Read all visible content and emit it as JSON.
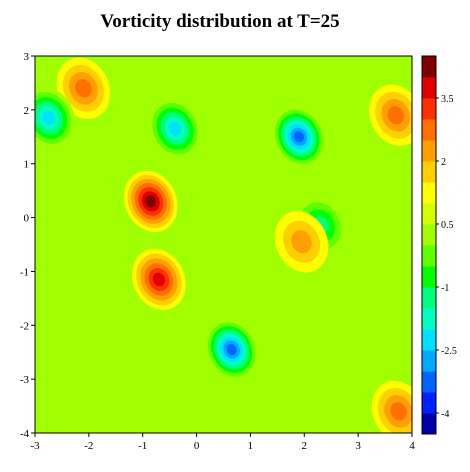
{
  "chart_data": {
    "type": "heatmap",
    "title": "Vorticity distribution at T=25",
    "xlabel": "",
    "ylabel": "",
    "xlim": [
      -3,
      4
    ],
    "ylim": [
      -4,
      3
    ],
    "x_ticks": [
      "-3",
      "-2",
      "-1",
      "0",
      "1",
      "2",
      "3",
      "4"
    ],
    "y_ticks": [
      "3",
      "2",
      "1",
      "0",
      "-1",
      "-2",
      "-3",
      "-4"
    ],
    "colorbar": {
      "range": [
        -4.5,
        4.5
      ],
      "levels": 18,
      "tick_labels": [
        "3.5",
        "2",
        "0.5",
        "-1",
        "-2.5",
        "-4"
      ],
      "colors": [
        "#0000a8",
        "#0020ff",
        "#0064ff",
        "#00a8ff",
        "#00e0ff",
        "#00ffc0",
        "#00ff80",
        "#00ff00",
        "#60ff00",
        "#a0ff00",
        "#d4ff00",
        "#ffff00",
        "#ffd000",
        "#ffa000",
        "#ff7000",
        "#ff3000",
        "#e00000",
        "#800000"
      ]
    },
    "grid": false,
    "vortices": [
      {
        "x": -0.7,
        "y": -1.15,
        "peak": 3.6
      },
      {
        "x": 0.65,
        "y": -2.45,
        "peak": -3.4
      },
      {
        "x": 1.9,
        "y": 1.5,
        "peak": -3.5
      },
      {
        "x": -0.85,
        "y": 0.3,
        "peak": 3.8
      },
      {
        "x": -0.4,
        "y": 1.65,
        "peak": -2.6
      },
      {
        "x": 2.3,
        "y": -0.15,
        "peak": -1.7
      },
      {
        "x": 1.95,
        "y": -0.45,
        "peak": 2.1
      },
      {
        "x": -2.1,
        "y": 2.4,
        "peak": 2.3
      },
      {
        "x": -2.75,
        "y": 1.85,
        "peak": -2.3
      },
      {
        "x": 3.7,
        "y": 1.9,
        "peak": 2.6
      },
      {
        "x": 3.75,
        "y": -3.6,
        "peak": 2.3
      }
    ]
  }
}
